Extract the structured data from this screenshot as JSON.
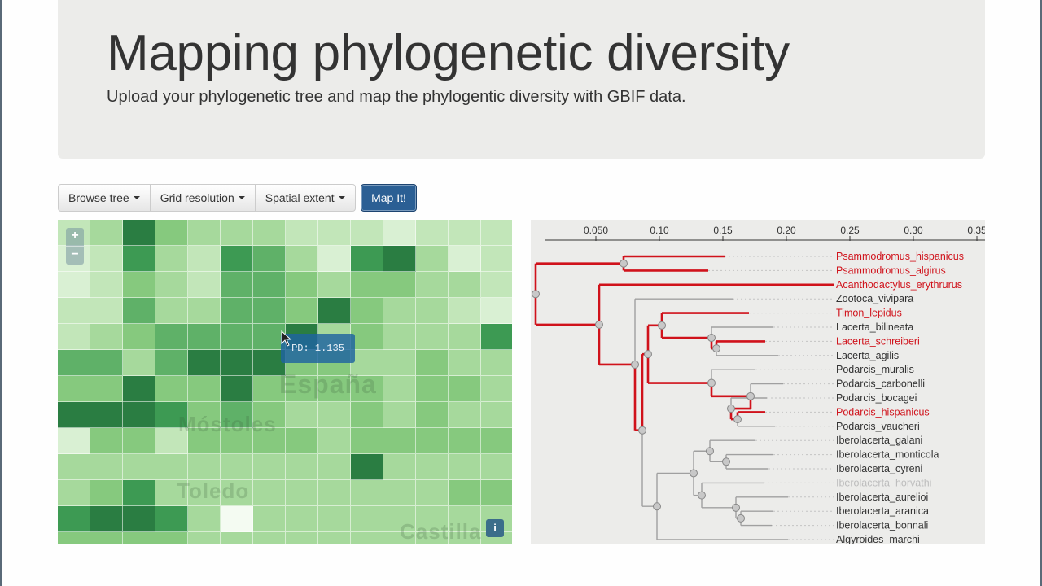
{
  "header": {
    "title": "Mapping phylogenetic diversity",
    "subtitle": "Upload your phylogenetic tree and map the phylogentic diversity with GBIF data."
  },
  "toolbar": {
    "browse_label": "Browse tree",
    "grid_label": "Grid resolution",
    "extent_label": "Spatial extent",
    "map_label": "Map It!"
  },
  "map": {
    "zoom_in": "+",
    "zoom_out": "−",
    "info_label": "i",
    "tooltip": "PD: 1.135",
    "colors": [
      "#f4fbf2",
      "#d9f0d3",
      "#c2e6b9",
      "#a6d99c",
      "#86c97e",
      "#5fb168",
      "#3d9a53",
      "#2a7d42",
      "#1f6636"
    ],
    "cells": [
      [
        2,
        3,
        7,
        4,
        3,
        3,
        3,
        2,
        2,
        2,
        1,
        2,
        2,
        2
      ],
      [
        1,
        2,
        6,
        3,
        2,
        6,
        5,
        3,
        1,
        6,
        7,
        3,
        1,
        2
      ],
      [
        1,
        2,
        4,
        3,
        2,
        5,
        5,
        4,
        3,
        4,
        4,
        3,
        3,
        2
      ],
      [
        2,
        2,
        5,
        3,
        3,
        5,
        5,
        4,
        7,
        4,
        3,
        3,
        2,
        1
      ],
      [
        2,
        3,
        4,
        5,
        5,
        5,
        5,
        7,
        3,
        4,
        3,
        3,
        3,
        6
      ],
      [
        5,
        5,
        3,
        5,
        7,
        7,
        7,
        4,
        4,
        3,
        3,
        4,
        3,
        3
      ],
      [
        4,
        4,
        7,
        4,
        4,
        7,
        4,
        4,
        4,
        4,
        3,
        4,
        4,
        3
      ],
      [
        7,
        7,
        7,
        6,
        4,
        5,
        4,
        3,
        3,
        4,
        3,
        4,
        3,
        3
      ],
      [
        1,
        4,
        4,
        2,
        4,
        4,
        4,
        4,
        3,
        4,
        4,
        4,
        4,
        4
      ],
      [
        3,
        3,
        3,
        3,
        3,
        3,
        3,
        3,
        3,
        7,
        3,
        3,
        3,
        3
      ],
      [
        3,
        4,
        6,
        3,
        3,
        3,
        3,
        3,
        3,
        3,
        3,
        3,
        4,
        4
      ],
      [
        6,
        7,
        7,
        6,
        3,
        0,
        3,
        3,
        3,
        3,
        3,
        3,
        3,
        3
      ],
      [
        4,
        4,
        4,
        4,
        3,
        3,
        3,
        3,
        3,
        3,
        3,
        3,
        3,
        3
      ]
    ],
    "labels": [
      "España",
      "Móstoles",
      "Toledo",
      "Castilla"
    ]
  },
  "tree": {
    "ticks": [
      "0.050",
      "0.10",
      "0.15",
      "0.20",
      "0.25",
      "0.30",
      "0.35"
    ],
    "highlight_color": "#d0121b",
    "leaves": [
      {
        "name": "Psammodromus_hispanicus",
        "status": "selected"
      },
      {
        "name": "Psammodromus_algirus",
        "status": "selected"
      },
      {
        "name": "Acanthodactylus_erythrurus",
        "status": "selected"
      },
      {
        "name": "Zootoca_vivipara",
        "status": "normal"
      },
      {
        "name": "Timon_lepidus",
        "status": "selected"
      },
      {
        "name": "Lacerta_bilineata",
        "status": "normal"
      },
      {
        "name": "Lacerta_schreiberi",
        "status": "selected"
      },
      {
        "name": "Lacerta_agilis",
        "status": "normal"
      },
      {
        "name": "Podarcis_muralis",
        "status": "normal"
      },
      {
        "name": "Podarcis_carbonelli",
        "status": "normal"
      },
      {
        "name": "Podarcis_bocagei",
        "status": "normal"
      },
      {
        "name": "Podarcis_hispanicus",
        "status": "selected"
      },
      {
        "name": "Podarcis_vaucheri",
        "status": "normal"
      },
      {
        "name": "Iberolacerta_galani",
        "status": "normal"
      },
      {
        "name": "Iberolacerta_monticola",
        "status": "normal"
      },
      {
        "name": "Iberolacerta_cyreni",
        "status": "normal"
      },
      {
        "name": "Iberolacerta_horvathi",
        "status": "faded"
      },
      {
        "name": "Iberolacerta_aurelioi",
        "status": "normal"
      },
      {
        "name": "Iberolacerta_aranica",
        "status": "normal"
      },
      {
        "name": "Iberolacerta_bonnali",
        "status": "normal"
      },
      {
        "name": "Algyroides_marchi",
        "status": "normal"
      }
    ]
  }
}
